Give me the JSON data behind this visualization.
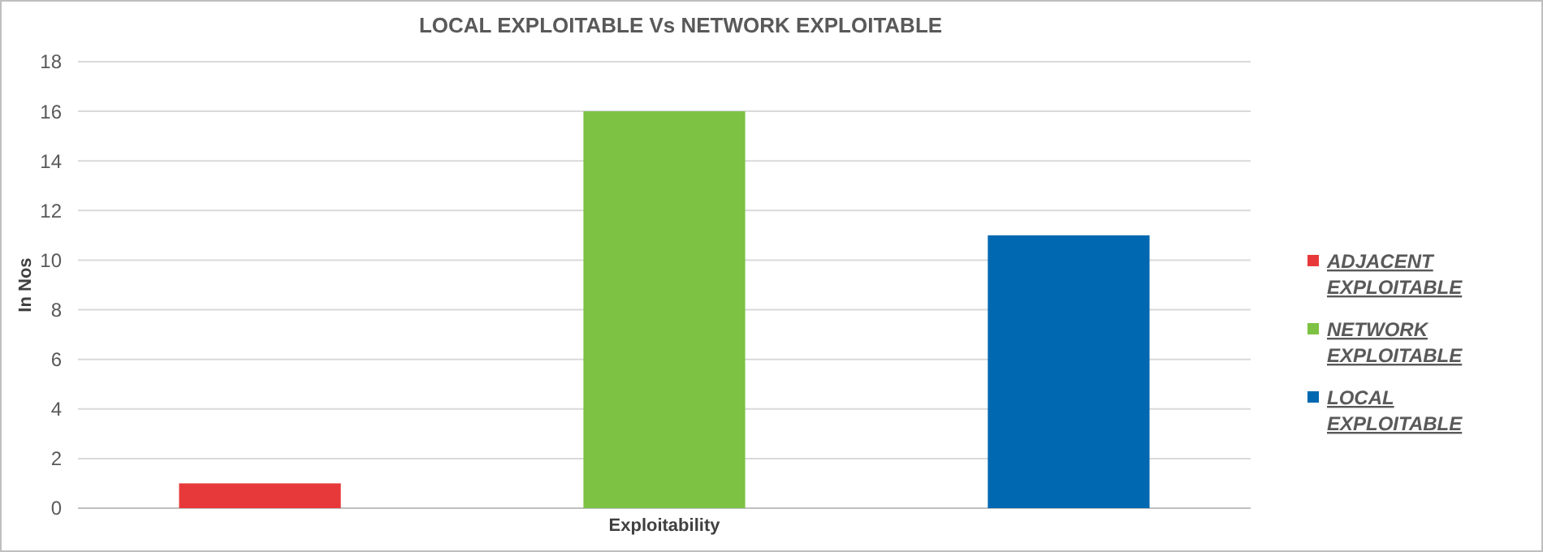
{
  "chart_data": {
    "type": "bar",
    "title": "LOCAL EXPLOITABLE Vs NETWORK EXPLOITABLE",
    "ylabel": "In Nos",
    "categories": [
      "Exploitability"
    ],
    "series": [
      {
        "name": "ADJACENT EXPLOITABLE",
        "color": "#e8393a",
        "values": [
          1
        ]
      },
      {
        "name": "NETWORK EXPLOITABLE",
        "color": "#7dc242",
        "values": [
          16
        ]
      },
      {
        "name": "LOCAL EXPLOITABLE",
        "color": "#0068b0",
        "values": [
          11
        ]
      }
    ],
    "ylim": [
      0,
      18
    ],
    "yticks": [
      0,
      2,
      4,
      6,
      8,
      10,
      12,
      14,
      16,
      18
    ],
    "grid": "y",
    "legend": "right"
  }
}
